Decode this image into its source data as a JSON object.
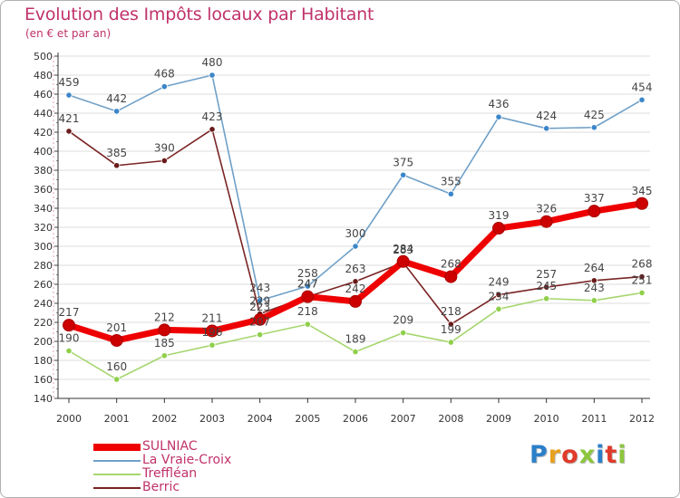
{
  "chart_data": {
    "type": "line",
    "title": "Evolution des Impôts locaux par Habitant",
    "subtitle": "(en € et par an)",
    "x": [
      "2000",
      "2001",
      "2002",
      "2003",
      "2004",
      "2005",
      "2006",
      "2007",
      "2008",
      "2009",
      "2010",
      "2011",
      "2012"
    ],
    "ylim": [
      140,
      500
    ],
    "yticks": [
      140,
      160,
      180,
      200,
      220,
      240,
      260,
      280,
      300,
      320,
      340,
      360,
      380,
      400,
      420,
      440,
      460,
      480,
      500
    ],
    "series": [
      {
        "name": "La Vraie-Croix",
        "color": "#6fa0c8",
        "marker": "#3b86c9",
        "values": [
          459,
          442,
          468,
          480,
          243,
          258,
          300,
          375,
          355,
          436,
          424,
          425,
          454
        ]
      },
      {
        "name": "Berric",
        "color": "#7a2424",
        "marker": "#6a1a1a",
        "values": [
          421,
          385,
          390,
          423,
          229,
          247,
          263,
          283,
          218,
          249,
          257,
          264,
          268
        ]
      },
      {
        "name": "Treffléan",
        "color": "#a6d66e",
        "marker": "#8fcf4a",
        "values": [
          190,
          160,
          185,
          196,
          207,
          218,
          189,
          209,
          199,
          234,
          245,
          243,
          251
        ]
      },
      {
        "name": "SULNIAC",
        "color": "#ee0000",
        "marker": "#cc0000",
        "values": [
          217,
          201,
          212,
          211,
          223,
          247,
          242,
          284,
          268,
          319,
          326,
          337,
          345
        ]
      }
    ],
    "legend_order": [
      "SULNIAC",
      "La Vraie-Croix",
      "Treffléan",
      "Berric"
    ],
    "legend_position": "bottom-left"
  },
  "logo": {
    "text": "Proxiti",
    "colors": [
      "#2b7fc9",
      "#e8a020",
      "#e03a2a",
      "#8cc63f",
      "#2b7fc9",
      "#e03a2a",
      "#8cc63f"
    ]
  }
}
